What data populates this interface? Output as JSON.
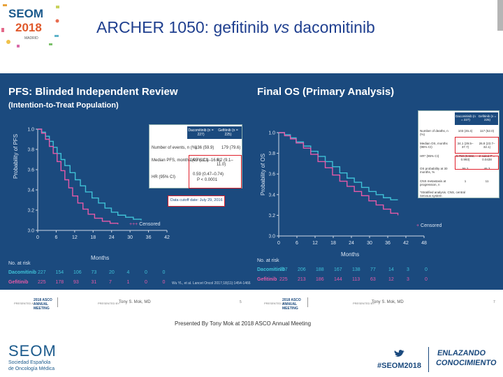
{
  "header": {
    "logo_word": "SEOM",
    "logo_year": "2018",
    "logo_city": "MADRID",
    "title_main": "ARCHER 1050: gefitinib ",
    "title_vs": "vs",
    "title_end": " dacomitinib"
  },
  "left_panel": {
    "title": "PFS: Blinded Independent Review",
    "subtitle": "(Intention-to-Treat Population)",
    "ylabel": "Probability of PFS",
    "xlabel": "Months",
    "yticks": [
      "1.0",
      "0.8",
      "0.6",
      "0.4",
      "0.2",
      "0.0"
    ],
    "xticks": [
      "0",
      "6",
      "12",
      "18",
      "24",
      "30",
      "36",
      "42"
    ],
    "legend_censored": "Censored",
    "table": {
      "col1": "Dacomitinib (n = 227)",
      "col2": "Gefitinib (n = 225)",
      "rows": [
        {
          "label": "Number of events, n (%)",
          "v1": "136 (59.9)",
          "v2": "179 (79.6)"
        },
        {
          "label": "Median PFS, months (95% CI)",
          "v1": "14.7 (11.1–16.6)",
          "v2": "9.2 (9.1–11.0)"
        },
        {
          "label": "HR (95% CI)",
          "v1": "0.59 (0.47–0.74)",
          "v2": "P < 0.0001"
        }
      ]
    },
    "cutoff": "Data cutoff date: July 29, 2016",
    "at_risk_label": "No. at risk",
    "rows": [
      {
        "name": "Dacomitinib",
        "values": [
          "227",
          "154",
          "106",
          "73",
          "20",
          "4",
          "0",
          "0"
        ]
      },
      {
        "name": "Gefitinib",
        "values": [
          "225",
          "178",
          "93",
          "31",
          "7",
          "1",
          "0",
          "0"
        ]
      }
    ],
    "reference": "Wu YL, et al. Lancet Oncol 2017;18(11):1454-1466"
  },
  "right_panel": {
    "title": "Final OS (Primary Analysis)",
    "ylabel": "Probability of OS",
    "xlabel": "Months",
    "yticks": [
      "1.0",
      "0.8",
      "0.6",
      "0.4",
      "0.2",
      "0.0"
    ],
    "xticks": [
      "0",
      "6",
      "12",
      "18",
      "24",
      "30",
      "36",
      "42",
      "48"
    ],
    "legend_censored": "Censored",
    "table": {
      "col1": "Dacomitinib (n = 227)",
      "col2": "Gefitinib (n = 225)",
      "rows": [
        {
          "label": "Number of deaths, n (%)",
          "v1": "103 (45.4)",
          "v2": "117 (52.0)"
        },
        {
          "label": "Median OS, months (95% CI)",
          "v1": "34.1 (29.5–37.7)",
          "v2": "26.8 (23.7–32.1)"
        },
        {
          "label": "HR* (95% CI)",
          "v1": "0.760 (0.582, 0.993)",
          "v2": "2-sided P = 0.0438"
        },
        {
          "label": "OS probability at 30 months, %",
          "v1": "56.2",
          "v2": "46.3"
        },
        {
          "label": "CNS metastasis at progression, n",
          "v1": "1",
          "v2": "11"
        }
      ],
      "notes": "*Stratified analysis. CNS, central nervous system"
    },
    "at_risk_label": "No. at risk",
    "rows": [
      {
        "name": "Dacomitinib",
        "values": [
          "227",
          "206",
          "188",
          "167",
          "138",
          "77",
          "14",
          "3",
          "0"
        ]
      },
      {
        "name": "Gefitinib",
        "values": [
          "225",
          "213",
          "186",
          "144",
          "113",
          "63",
          "12",
          "3",
          "0"
        ]
      }
    ]
  },
  "footer": {
    "presented_left": "PRESENTED AT:",
    "asco_left": "2018 ASCO ANNUAL MEETING",
    "presented_by_left": "PRESENTED BY:",
    "speaker_left": "Tony S. Mok, MD",
    "page_left": "5",
    "presented_right": "PRESENTED AT:",
    "asco_right": "2018 ASCO ANNUAL MEETING",
    "presented_by_right": "PRESENTED BY:",
    "speaker_right": "Tony S. Mok, MD",
    "page_right": "7",
    "caption": "Presented By Tony Mok at 2018 ASCO Annual Meeting"
  },
  "bottom": {
    "seom": "SEOM",
    "seom_sub1": "Sociedad Española",
    "seom_sub2": "de Oncología Médica",
    "hashtag": "#SEOM2018",
    "slogan1": "ENLAZANDO",
    "slogan2": "CONOCIMIENTO"
  },
  "colors": {
    "panel": "#1b4a7e",
    "dacomitinib": "#3fc1d6",
    "gefitinib": "#e65aa8",
    "title": "#1f3f8f",
    "highlight": "#e0202c"
  }
}
